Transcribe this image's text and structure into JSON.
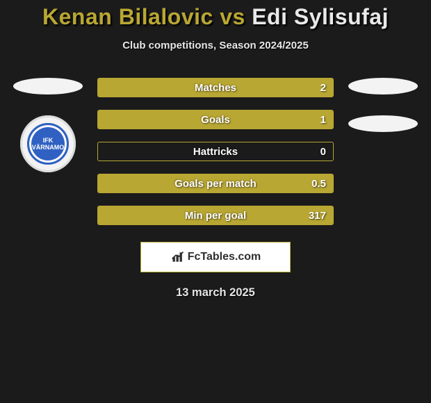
{
  "title": {
    "player1": "Kenan Bilalovic",
    "vs": "vs",
    "player2": "Edi Sylisufaj",
    "player1_color": "#b9a733",
    "player2_color": "#e9e9e9"
  },
  "subtitle": "Club competitions, Season 2024/2025",
  "colors": {
    "background": "#1b1b1b",
    "bar_border": "#b9a733",
    "bar_fill_p1": "#b9a733",
    "logo_border": "#b9a733",
    "oval": "#f3f3f3",
    "badge_bg": "#f3f3f3",
    "badge_inner": "#3061c2"
  },
  "badge": {
    "left_text": "IFK\nVÄRNAMO"
  },
  "stats": [
    {
      "label": "Matches",
      "value_right": "2",
      "fill_pct": 100
    },
    {
      "label": "Goals",
      "value_right": "1",
      "fill_pct": 100
    },
    {
      "label": "Hattricks",
      "value_right": "0",
      "fill_pct": 0
    },
    {
      "label": "Goals per match",
      "value_right": "0.5",
      "fill_pct": 100
    },
    {
      "label": "Min per goal",
      "value_right": "317",
      "fill_pct": 100
    }
  ],
  "logo": {
    "text": "FcTables.com"
  },
  "date": "13 march 2025"
}
